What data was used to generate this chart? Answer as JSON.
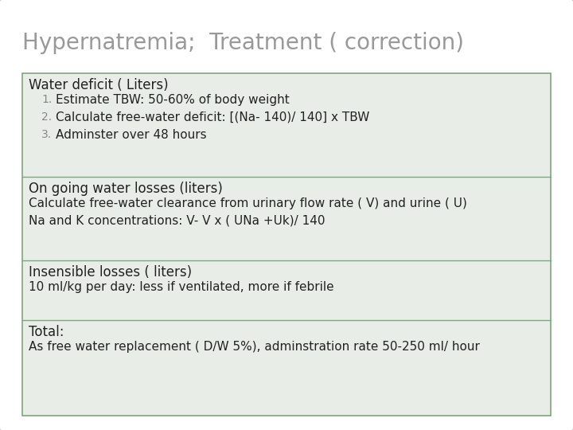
{
  "title": "Hypernatremia;  Treatment ( correction)",
  "title_color": "#999999",
  "title_fontsize": 20,
  "bg_color": "#ffffff",
  "outer_box_edge_color": "#cccccc",
  "inner_bg_color": "#e8ede8",
  "border_color": "#7aaa7a",
  "sections": [
    {
      "header": "Water deficit ( Liters)",
      "header_bold": false,
      "items": [
        {
          "numbered": true,
          "num": "1.",
          "text": "Estimate TBW: 50-60% of body weight"
        },
        {
          "numbered": true,
          "num": "2.",
          "text": "Calculate free-water deficit: [(Na- 140)/ 140] x TBW"
        },
        {
          "numbered": true,
          "num": "3.",
          "text": "Adminster over 48 hours"
        }
      ]
    },
    {
      "header": "On going water losses (liters)",
      "header_bold": false,
      "items": [
        {
          "numbered": false,
          "text": "Calculate free-water clearance from urinary flow rate ( V) and urine ( U)"
        },
        {
          "numbered": false,
          "text": "Na and K concentrations: V- V x ( UNa +Uk)/ 140"
        }
      ]
    },
    {
      "header": "Insensible losses ( liters)",
      "header_bold": false,
      "items": [
        {
          "numbered": false,
          "text": "10 ml/kg per day: less if ventilated, more if febrile"
        }
      ]
    },
    {
      "header": "Total:",
      "header_bold": false,
      "items": [
        {
          "numbered": false,
          "text": "As free water replacement ( D/W 5%), adminstration rate 50-250 ml/ hour"
        }
      ]
    }
  ],
  "font_family": "DejaVu Sans",
  "header_fontsize": 12,
  "body_fontsize": 11,
  "num_fontsize": 10
}
